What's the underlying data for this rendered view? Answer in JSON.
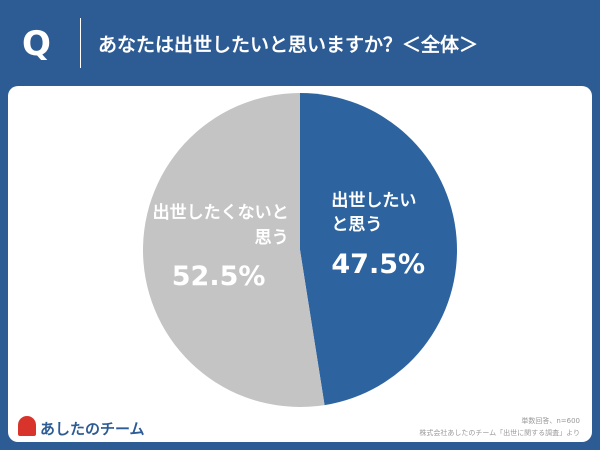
{
  "question_mark": "Q",
  "brand": "あしたのチーム",
  "chart_data": {
    "type": "pie",
    "title": "あなたは出世したいと思いますか？＜全体＞",
    "categories": [
      "出世したいと思う",
      "出世したくないと思う"
    ],
    "values": [
      47.5,
      52.5
    ],
    "value_labels": [
      "47.5%",
      "52.5%"
    ],
    "colors": [
      "#2d64a0",
      "#c4c4c4"
    ],
    "notes": [
      "単数回答、n=600",
      "株式会社あしたのチーム「出世に関する調査」より"
    ]
  }
}
